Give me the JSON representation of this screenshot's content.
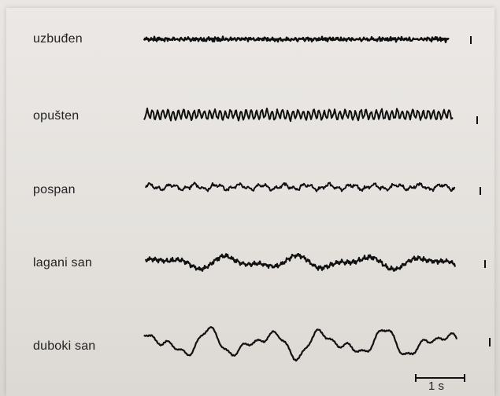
{
  "rows": [
    {
      "label": "uzbuđen"
    },
    {
      "label": "opušten"
    },
    {
      "label": "pospan"
    },
    {
      "label": "lagani san"
    },
    {
      "label": "duboki san"
    }
  ],
  "scale_bar": {
    "label": "1 s"
  },
  "colors": {
    "ink": "#111111",
    "paper": "#e6e3df"
  }
}
